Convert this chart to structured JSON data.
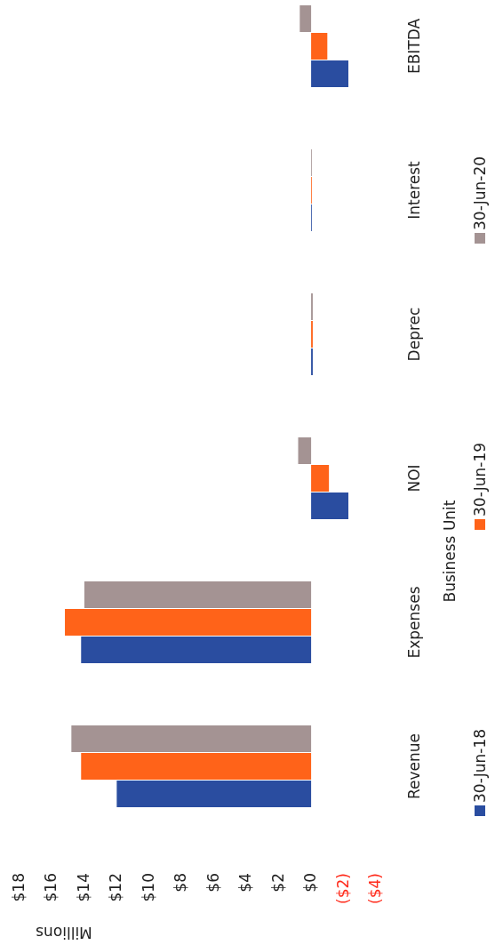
{
  "chart_data": {
    "type": "bar",
    "orientation": "horizontal",
    "categories": [
      "EBITDA",
      "Interest",
      "Deprec",
      "NOI",
      "Expenses",
      "Revenue"
    ],
    "series": [
      {
        "name": "30-Jun-18",
        "color": "#2a4da0",
        "values": [
          -2.3,
          0,
          -0.1,
          -2.3,
          14.2,
          12.0
        ]
      },
      {
        "name": "30-Jun-19",
        "color": "#ff6319",
        "values": [
          -1.0,
          0,
          -0.1,
          -1.1,
          15.2,
          14.2
        ]
      },
      {
        "name": "30-Jun-20",
        "color": "#a49393",
        "values": [
          0.7,
          0,
          -0.1,
          0.8,
          14.0,
          14.8
        ]
      }
    ],
    "xlabel": "Millions",
    "ylabel": "Business Unit",
    "xlim": [
      18,
      -4
    ],
    "xticks": [
      {
        "value": 18,
        "label": "$18"
      },
      {
        "value": 16,
        "label": "$16"
      },
      {
        "value": 14,
        "label": "$14"
      },
      {
        "value": 12,
        "label": "$12"
      },
      {
        "value": 10,
        "label": "$10"
      },
      {
        "value": 8,
        "label": "$8"
      },
      {
        "value": 6,
        "label": "$6"
      },
      {
        "value": 4,
        "label": "$4"
      },
      {
        "value": 2,
        "label": "$2"
      },
      {
        "value": 0,
        "label": "$0"
      },
      {
        "value": -2,
        "label": "($2)"
      },
      {
        "value": -4,
        "label": "($4)"
      }
    ],
    "grid": false,
    "legend": "right"
  }
}
